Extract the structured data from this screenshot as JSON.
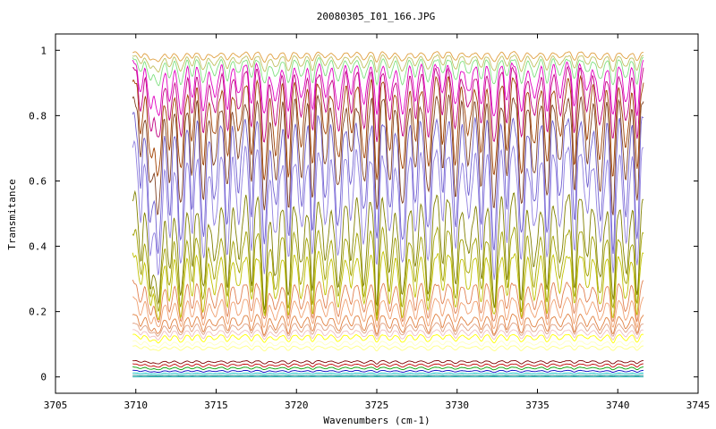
{
  "chart_data": {
    "type": "line",
    "title": "20080305_I01_166.JPG",
    "xlabel": "Wavenumbers (cm-1)",
    "ylabel": "Transmitance",
    "xlim": [
      3705,
      3745
    ],
    "ylim": [
      -0.05,
      1.05
    ],
    "x_range": [
      3709.8,
      3741.6
    ],
    "xticks": [
      3705,
      3710,
      3715,
      3720,
      3725,
      3730,
      3735,
      3740,
      3745
    ],
    "yticks": [
      0,
      0.2,
      0.4,
      0.6,
      0.8,
      1
    ],
    "ytick_labels": [
      "0",
      "0.2",
      "0.4",
      "0.6",
      "0.8",
      "1"
    ],
    "grid": false,
    "legend": "none",
    "absorption_line_centers": [
      3710.3,
      3710.9,
      3711.4,
      3712.1,
      3712.8,
      3713.5,
      3714.2,
      3714.9,
      3715.7,
      3716.4,
      3717.2,
      3718.0,
      3718.7,
      3719.5,
      3720.3,
      3721.0,
      3721.8,
      3722.6,
      3723.4,
      3724.2,
      3725.0,
      3725.8,
      3726.6,
      3727.4,
      3728.2,
      3729.1,
      3729.9,
      3730.7,
      3731.5,
      3732.3,
      3733.1,
      3734.0,
      3734.8,
      3735.6,
      3736.4,
      3737.3,
      3738.1,
      3738.9,
      3739.7,
      3740.5,
      3741.2
    ],
    "series": [
      {
        "baseline": 0.0,
        "dip_depth": 0.0,
        "color": "#00a0a0"
      },
      {
        "baseline": 0.005,
        "dip_depth": 0.002,
        "color": "#008080"
      },
      {
        "baseline": 0.012,
        "dip_depth": 0.004,
        "color": "#00c0c0"
      },
      {
        "baseline": 0.02,
        "dip_depth": 0.006,
        "color": "#0000c0"
      },
      {
        "baseline": 0.03,
        "dip_depth": 0.008,
        "color": "#00a000"
      },
      {
        "baseline": 0.04,
        "dip_depth": 0.01,
        "color": "#c00000"
      },
      {
        "baseline": 0.05,
        "dip_depth": 0.01,
        "color": "#800000"
      },
      {
        "baseline": 0.095,
        "dip_depth": 0.015,
        "color": "#ffff80"
      },
      {
        "baseline": 0.11,
        "dip_depth": 0.02,
        "color": "#ffffc0"
      },
      {
        "baseline": 0.13,
        "dip_depth": 0.025,
        "color": "#ffff00"
      },
      {
        "baseline": 0.145,
        "dip_depth": 0.03,
        "color": "#f0c0c0"
      },
      {
        "baseline": 0.165,
        "dip_depth": 0.04,
        "color": "#e0a080"
      },
      {
        "baseline": 0.19,
        "dip_depth": 0.06,
        "color": "#e08040"
      },
      {
        "baseline": 0.24,
        "dip_depth": 0.09,
        "color": "#f0a070"
      },
      {
        "baseline": 0.29,
        "dip_depth": 0.12,
        "color": "#e08050"
      },
      {
        "baseline": 0.38,
        "dip_depth": 0.2,
        "color": "#c0c000"
      },
      {
        "baseline": 0.45,
        "dip_depth": 0.25,
        "color": "#a0a000"
      },
      {
        "baseline": 0.55,
        "dip_depth": 0.33,
        "color": "#808000"
      },
      {
        "baseline": 0.7,
        "dip_depth": 0.38,
        "color": "#9080e0"
      },
      {
        "baseline": 0.8,
        "dip_depth": 0.4,
        "color": "#7060d0"
      },
      {
        "baseline": 0.86,
        "dip_depth": 0.35,
        "color": "#804020"
      },
      {
        "baseline": 0.91,
        "dip_depth": 0.3,
        "color": "#a04000"
      },
      {
        "baseline": 0.94,
        "dip_depth": 0.22,
        "color": "#c00080"
      },
      {
        "baseline": 0.96,
        "dip_depth": 0.16,
        "color": "#e000c0"
      },
      {
        "baseline": 0.975,
        "dip_depth": 0.08,
        "color": "#80e080"
      },
      {
        "baseline": 0.985,
        "dip_depth": 0.05,
        "color": "#c0c060"
      },
      {
        "baseline": 0.995,
        "dip_depth": 0.03,
        "color": "#e0a040"
      }
    ]
  }
}
